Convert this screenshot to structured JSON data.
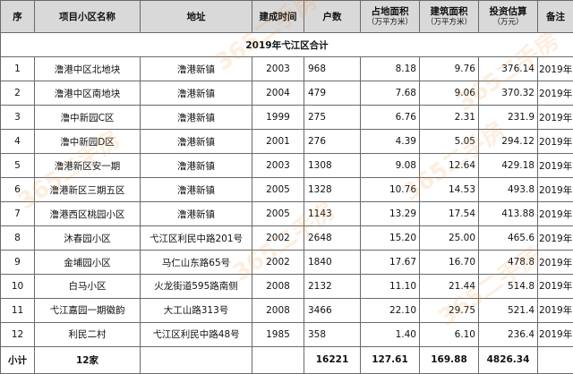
{
  "headers": {
    "seq": "序",
    "name": "项目小区名称",
    "address": "地址",
    "year": "建成时间",
    "households": "户数",
    "land_area": "占地面积",
    "land_area_unit": "（万平方米）",
    "build_area": "建筑面积",
    "build_area_unit": "（万平方米）",
    "investment": "投资估算",
    "investment_unit": "（万元）",
    "remarks": "备注"
  },
  "section_title": "2019年弋江区合计",
  "rows": [
    {
      "seq": "1",
      "name": "澛港中区北地块",
      "address": "澛港新镇",
      "year": "2003",
      "households": "968",
      "land": "8.18",
      "build": "9.76",
      "invest": "376.14",
      "remark": "2019年"
    },
    {
      "seq": "2",
      "name": "澛港中区南地块",
      "address": "澛港新镇",
      "year": "2004",
      "households": "479",
      "land": "7.68",
      "build": "9.06",
      "invest": "370.32",
      "remark": "2019年"
    },
    {
      "seq": "3",
      "name": "澛中新园C区",
      "address": "澛港新镇",
      "year": "1999",
      "households": "275",
      "land": "6.76",
      "build": "2.31",
      "invest": "231.9",
      "remark": "2019年"
    },
    {
      "seq": "4",
      "name": "澛中新园D区",
      "address": "澛港新镇",
      "year": "2001",
      "households": "276",
      "land": "4.39",
      "build": "5.05",
      "invest": "294.12",
      "remark": "2019年"
    },
    {
      "seq": "5",
      "name": "澛港新区安一期",
      "address": "澛港新镇",
      "year": "2003",
      "households": "1308",
      "land": "9.08",
      "build": "12.64",
      "invest": "429.18",
      "remark": "2019年"
    },
    {
      "seq": "6",
      "name": "澛港新区三期五区",
      "address": "澛港新镇",
      "year": "2005",
      "households": "1328",
      "land": "10.76",
      "build": "14.53",
      "invest": "493.8",
      "remark": "2019年"
    },
    {
      "seq": "7",
      "name": "澛港西区桃园小区",
      "address": "澛港新镇",
      "year": "2005",
      "households": "1143",
      "land": "13.29",
      "build": "17.54",
      "invest": "413.88",
      "remark": "2019年"
    },
    {
      "seq": "8",
      "name": "沐春园小区",
      "address": "弋江区利民中路201号",
      "year": "2002",
      "households": "2648",
      "land": "15.20",
      "build": "25.00",
      "invest": "465.6",
      "remark": "2019年"
    },
    {
      "seq": "9",
      "name": "金埔园小区",
      "address": "马仁山东路65号",
      "year": "2002",
      "households": "1840",
      "land": "17.67",
      "build": "16.70",
      "invest": "478.8",
      "remark": "2019年"
    },
    {
      "seq": "10",
      "name": "白马小区",
      "address": "火龙街道595路南侧",
      "year": "2008",
      "households": "2132",
      "land": "11.10",
      "build": "21.44",
      "invest": "514.8",
      "remark": "2019年"
    },
    {
      "seq": "11",
      "name": "弋江嘉园一期徽韵",
      "address": "大工山路313号",
      "year": "2008",
      "households": "3466",
      "land": "22.10",
      "build": "29.75",
      "invest": "521.4",
      "remark": "2019年"
    },
    {
      "seq": "12",
      "name": "利民二村",
      "address": "弋江区利民中路48号",
      "year": "1985",
      "households": "358",
      "land": "1.40",
      "build": "6.10",
      "invest": "236.4",
      "remark": "2019年"
    }
  ],
  "footer": {
    "label": "小计",
    "count": "12家",
    "households": "16221",
    "land": "127.61",
    "build": "169.88",
    "invest": "4826.34"
  },
  "watermark": {
    "text": "365二手房",
    "color": "#f0963c"
  }
}
